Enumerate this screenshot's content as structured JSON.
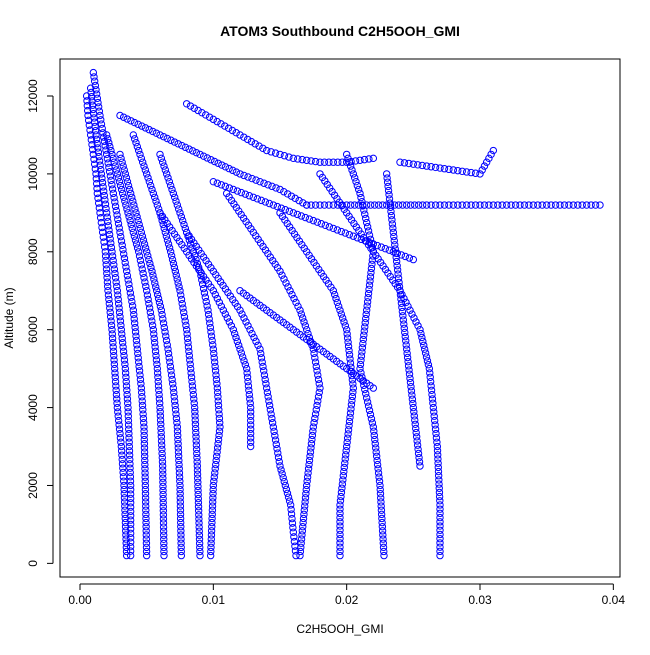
{
  "chart_data": {
    "type": "scatter",
    "title": "ATOM3 Southbound C2H5OOH_GMI",
    "xlabel": "C2H5OOH_GMI",
    "ylabel": "Altitude (m)",
    "xlim": [
      0,
      0.04
    ],
    "ylim": [
      0,
      12600
    ],
    "x_ticks": [
      0.0,
      0.01,
      0.02,
      0.03,
      0.04
    ],
    "x_tick_labels": [
      "0.00",
      "0.01",
      "0.02",
      "0.03",
      "0.04"
    ],
    "y_ticks": [
      0,
      2000,
      4000,
      6000,
      8000,
      10000,
      12000
    ],
    "y_tick_labels": [
      "0",
      "2000",
      "4000",
      "6000",
      "8000",
      "10000",
      "12000"
    ],
    "grid": false,
    "legend": "none",
    "marker": "open-circle",
    "color": "#0000ff",
    "series": [
      {
        "x": [
          0.0005,
          0.0006,
          0.0008,
          0.001,
          0.0012,
          0.0013,
          0.0015,
          0.0017,
          0.0019,
          0.0021,
          0.0024,
          0.0026,
          0.0028,
          0.0031,
          0.0033,
          0.0035
        ],
        "y": [
          12000,
          11500,
          11000,
          10500,
          10000,
          9500,
          9000,
          8500,
          8000,
          7000,
          6000,
          5000,
          4000,
          3000,
          2000,
          200
        ]
      },
      {
        "x": [
          0.0008,
          0.0012,
          0.0016,
          0.002,
          0.0024,
          0.0028,
          0.0031,
          0.0034,
          0.0036,
          0.0037,
          0.0038,
          0.0038,
          0.0038
        ],
        "y": [
          12200,
          11000,
          10000,
          9000,
          8000,
          7000,
          6000,
          5000,
          4000,
          3000,
          2000,
          1000,
          200
        ]
      },
      {
        "x": [
          0.001,
          0.0015,
          0.002,
          0.0025,
          0.003,
          0.0035,
          0.004,
          0.0043,
          0.0046,
          0.0048,
          0.0049,
          0.005
        ],
        "y": [
          12600,
          11500,
          10500,
          9500,
          8500,
          7500,
          6500,
          5500,
          4500,
          3500,
          2000,
          200
        ]
      },
      {
        "x": [
          0.002,
          0.0028,
          0.0036,
          0.0044,
          0.005,
          0.0055,
          0.0058,
          0.006,
          0.0062,
          0.0063
        ],
        "y": [
          11000,
          10000,
          9000,
          8000,
          7000,
          6000,
          5000,
          4000,
          2500,
          200
        ]
      },
      {
        "x": [
          0.003,
          0.0038,
          0.0046,
          0.0054,
          0.0061,
          0.0066,
          0.007,
          0.0073,
          0.0075,
          0.0076
        ],
        "y": [
          10500,
          9500,
          8500,
          7500,
          6500,
          5500,
          4500,
          3500,
          2000,
          200
        ]
      },
      {
        "x": [
          0.004,
          0.005,
          0.006,
          0.0068,
          0.0075,
          0.008,
          0.0083,
          0.0086,
          0.0088,
          0.009
        ],
        "y": [
          11000,
          10000,
          9000,
          8000,
          7000,
          6000,
          5000,
          4000,
          2500,
          200
        ]
      },
      {
        "x": [
          0.006,
          0.007,
          0.008,
          0.009,
          0.0096,
          0.01,
          0.0103,
          0.0105,
          0.01,
          0.0098
        ],
        "y": [
          10500,
          9500,
          8500,
          7500,
          6500,
          5500,
          4500,
          3500,
          2000,
          200
        ]
      },
      {
        "x": [
          0.003,
          0.006,
          0.009,
          0.012,
          0.015,
          0.017
        ],
        "y": [
          11500,
          11000,
          10500,
          10000,
          9600,
          9200
        ]
      },
      {
        "x": [
          0.006,
          0.008,
          0.01,
          0.0115,
          0.0125,
          0.0128,
          0.0128
        ],
        "y": [
          9000,
          8000,
          7000,
          6000,
          5000,
          4000,
          3000
        ]
      },
      {
        "x": [
          0.008,
          0.01,
          0.012,
          0.0135,
          0.014,
          0.0145,
          0.015,
          0.0158,
          0.016,
          0.0162
        ],
        "y": [
          8500,
          7500,
          6500,
          5500,
          4500,
          3500,
          2500,
          1500,
          800,
          200
        ]
      },
      {
        "x": [
          0.011,
          0.013,
          0.015,
          0.0165,
          0.0175,
          0.018,
          0.0175,
          0.017,
          0.0165
        ],
        "y": [
          9500,
          8500,
          7500,
          6500,
          5500,
          4500,
          3500,
          2000,
          200
        ]
      },
      {
        "x": [
          0.015,
          0.017,
          0.019,
          0.02,
          0.0205,
          0.02,
          0.0195,
          0.0195
        ],
        "y": [
          9000,
          8000,
          7000,
          6000,
          4500,
          3000,
          1500,
          200
        ]
      },
      {
        "x": [
          0.02,
          0.021,
          0.022,
          0.0215,
          0.021,
          0.022,
          0.0225,
          0.0228
        ],
        "y": [
          10500,
          9500,
          8000,
          6500,
          5000,
          3500,
          2000,
          200
        ]
      },
      {
        "x": [
          0.023,
          0.0235,
          0.024,
          0.0245,
          0.025,
          0.0255
        ],
        "y": [
          10000,
          8500,
          7000,
          5500,
          4000,
          2500
        ]
      },
      {
        "x": [
          0.018,
          0.02,
          0.022,
          0.024,
          0.0255,
          0.0262,
          0.0265,
          0.0268,
          0.027,
          0.027
        ],
        "y": [
          10000,
          9000,
          8000,
          7000,
          6000,
          5000,
          4000,
          3000,
          1500,
          200
        ]
      },
      {
        "x": [
          0.024,
          0.026,
          0.028,
          0.03,
          0.031
        ],
        "y": [
          10300,
          10200,
          10100,
          10000,
          10600
        ]
      },
      {
        "x": [
          0.017,
          0.02,
          0.023,
          0.026,
          0.029,
          0.031,
          0.033,
          0.035,
          0.037,
          0.039
        ],
        "y": [
          9200,
          9200,
          9200,
          9200,
          9200,
          9200,
          9200,
          9200,
          9200,
          9200
        ]
      },
      {
        "x": [
          0.01,
          0.013,
          0.016,
          0.019,
          0.022,
          0.025
        ],
        "y": [
          9800,
          9400,
          9000,
          8600,
          8200,
          7800
        ]
      },
      {
        "x": [
          0.008,
          0.01,
          0.012,
          0.014,
          0.016,
          0.018,
          0.02,
          0.022
        ],
        "y": [
          11800,
          11400,
          11000,
          10600,
          10400,
          10300,
          10300,
          10400
        ]
      },
      {
        "x": [
          0.012,
          0.014,
          0.016,
          0.018,
          0.02,
          0.022
        ],
        "y": [
          7000,
          6500,
          6000,
          5500,
          5000,
          4500
        ]
      }
    ]
  }
}
